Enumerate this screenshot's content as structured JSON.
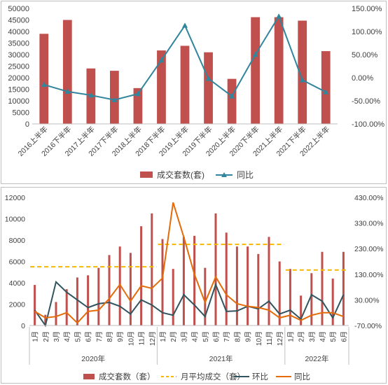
{
  "chart_data": [
    {
      "type": "bar",
      "categories": [
        "2016上半年",
        "2016下半年",
        "2017上半年",
        "2017下半年",
        "2018上半年",
        "2018下半年",
        "2019上半年",
        "2019下半年",
        "2020上半年",
        "2020下半年",
        "2021上半年",
        "2021下半年",
        "2022上半年"
      ],
      "series": [
        {
          "name": "成交套数（套）",
          "type": "bar",
          "axis": "left",
          "color": "#c0504d",
          "values": [
            39000,
            45000,
            24000,
            23000,
            15500,
            31800,
            33800,
            31000,
            19500,
            46200,
            46200,
            44700,
            31500
          ]
        },
        {
          "name": "同比",
          "type": "line",
          "axis": "right",
          "color": "#31859c",
          "marker": "triangle",
          "values": [
            -15,
            -30,
            -38,
            -48,
            -35,
            38,
            113,
            -2,
            -40,
            50,
            133,
            -5,
            -31
          ]
        }
      ],
      "ylim_left": [
        0,
        50000
      ],
      "yticks_left": [
        "0",
        "5000",
        "10000",
        "15000",
        "20000",
        "25000",
        "30000",
        "35000",
        "40000",
        "45000",
        "50000"
      ],
      "ylim_right": [
        -100,
        150
      ],
      "yticks_right": [
        "-100.00%",
        "-50.00%",
        "0.00%",
        "50.00%",
        "100.00%",
        "150.00%"
      ],
      "legend_position": "bottom",
      "grid": false
    },
    {
      "type": "bar",
      "categories": [
        "1月",
        "2月",
        "3月",
        "4月",
        "5月",
        "6月",
        "7月",
        "8月",
        "9月",
        "10月",
        "11月",
        "12月",
        "1月",
        "2月",
        "3月",
        "4月",
        "5月",
        "6月",
        "7月",
        "8月",
        "9月",
        "10月",
        "11月",
        "12月",
        "1月",
        "2月",
        "3月",
        "4月",
        "5月",
        "6月"
      ],
      "year_labels": [
        "2020年",
        "2021年",
        "2022年"
      ],
      "series": [
        {
          "name": "成交套数（套）",
          "type": "bar",
          "axis": "left",
          "color": "#c0504d",
          "values": [
            3800,
            1000,
            2200,
            3400,
            4500,
            4700,
            5400,
            6600,
            7400,
            6800,
            9300,
            10500,
            8100,
            5300,
            8300,
            8400,
            5400,
            10500,
            8700,
            7400,
            7400,
            6700,
            8300,
            6000,
            5300,
            2800,
            4900,
            6900,
            4400,
            6900
          ]
        },
        {
          "name": "月平均成交（套）",
          "type": "dashed",
          "axis": "left",
          "color": "#f5b800",
          "segments": [
            {
              "from": 0,
              "to": 11,
              "value": 5500
            },
            {
              "from": 12,
              "to": 23,
              "value": 7600
            },
            {
              "from": 24,
              "to": 29,
              "value": 5200
            }
          ]
        },
        {
          "name": "环比",
          "type": "line",
          "axis": "right",
          "color": "#31545e",
          "values": [
            -10,
            -70,
            100,
            60,
            30,
            0,
            15,
            20,
            5,
            -25,
            30,
            10,
            -20,
            -30,
            50,
            10,
            -35,
            90,
            -15,
            -13,
            5,
            -5,
            25,
            -25,
            -10,
            -45,
            50,
            25,
            -40,
            50
          ]
        },
        {
          "name": "同比",
          "type": "line",
          "axis": "right",
          "color": "#e36c09",
          "values": [
            -15,
            -40,
            -35,
            -20,
            -60,
            -15,
            -10,
            35,
            90,
            25,
            85,
            75,
            115,
            410,
            275,
            130,
            20,
            120,
            50,
            15,
            5,
            0,
            -10,
            -40,
            -30,
            -50,
            -30,
            -20,
            -20,
            -35
          ]
        }
      ],
      "ylim_left": [
        0,
        12000
      ],
      "yticks_left": [
        "0",
        "2000",
        "4000",
        "6000",
        "8000",
        "10000",
        "12000"
      ],
      "ylim_right": [
        -70,
        430
      ],
      "yticks_right": [
        "-70.00%",
        "30.00%",
        "130.00%",
        "230.00%",
        "330.00%",
        "430.00%"
      ],
      "legend_position": "bottom",
      "grid": false
    }
  ],
  "legend": {
    "top": [
      "成交套数(套)",
      "同比"
    ],
    "bottom": [
      "成交套数（套）",
      "月平均成交（套）",
      "环比",
      "同比"
    ]
  }
}
